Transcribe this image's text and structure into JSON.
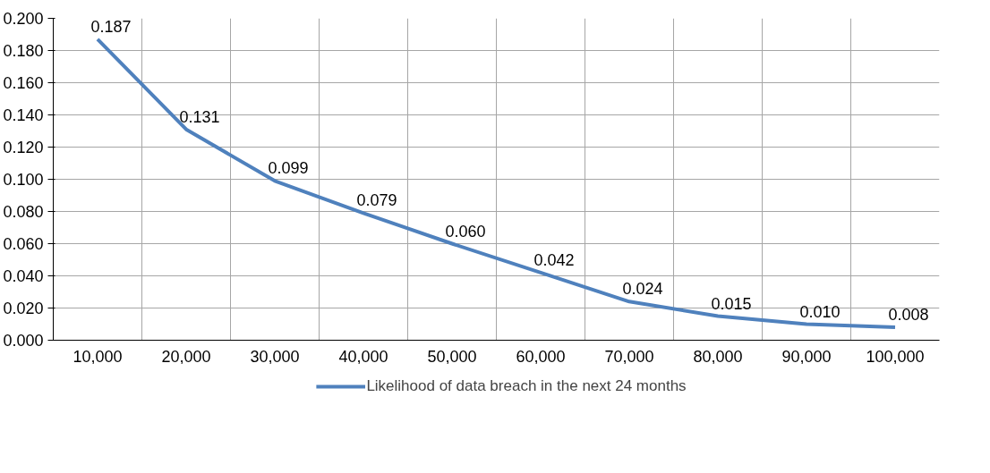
{
  "chart_data": {
    "type": "line",
    "categories": [
      "10,000",
      "20,000",
      "30,000",
      "40,000",
      "50,000",
      "60,000",
      "70,000",
      "80,000",
      "90,000",
      "100,000"
    ],
    "series": [
      {
        "name": "Likelihood of data breach in the next 24 months",
        "color": "#4f81bd",
        "values": [
          0.187,
          0.131,
          0.099,
          0.079,
          0.06,
          0.042,
          0.024,
          0.015,
          0.01,
          0.008
        ],
        "value_labels": [
          "0.187",
          "0.131",
          "0.099",
          "0.079",
          "0.060",
          "0.042",
          "0.024",
          "0.015",
          "0.010",
          "0.008"
        ]
      }
    ],
    "ylim": [
      0,
      0.2
    ],
    "yticks": [
      {
        "value": 0,
        "label": "0.000"
      },
      {
        "value": 0.02,
        "label": "0.020"
      },
      {
        "value": 0.04,
        "label": "0.040"
      },
      {
        "value": 0.06,
        "label": "0.060"
      },
      {
        "value": 0.08,
        "label": "0.080"
      },
      {
        "value": 0.1,
        "label": "0.100"
      },
      {
        "value": 0.12,
        "label": "0.120"
      },
      {
        "value": 0.14,
        "label": "0.140"
      },
      {
        "value": 0.16,
        "label": "0.160"
      },
      {
        "value": 0.18,
        "label": "0.180"
      },
      {
        "value": 0.2,
        "label": "0.200"
      }
    ],
    "grid": true,
    "legend": "bottom",
    "marker": "none",
    "line_style": "solid"
  }
}
